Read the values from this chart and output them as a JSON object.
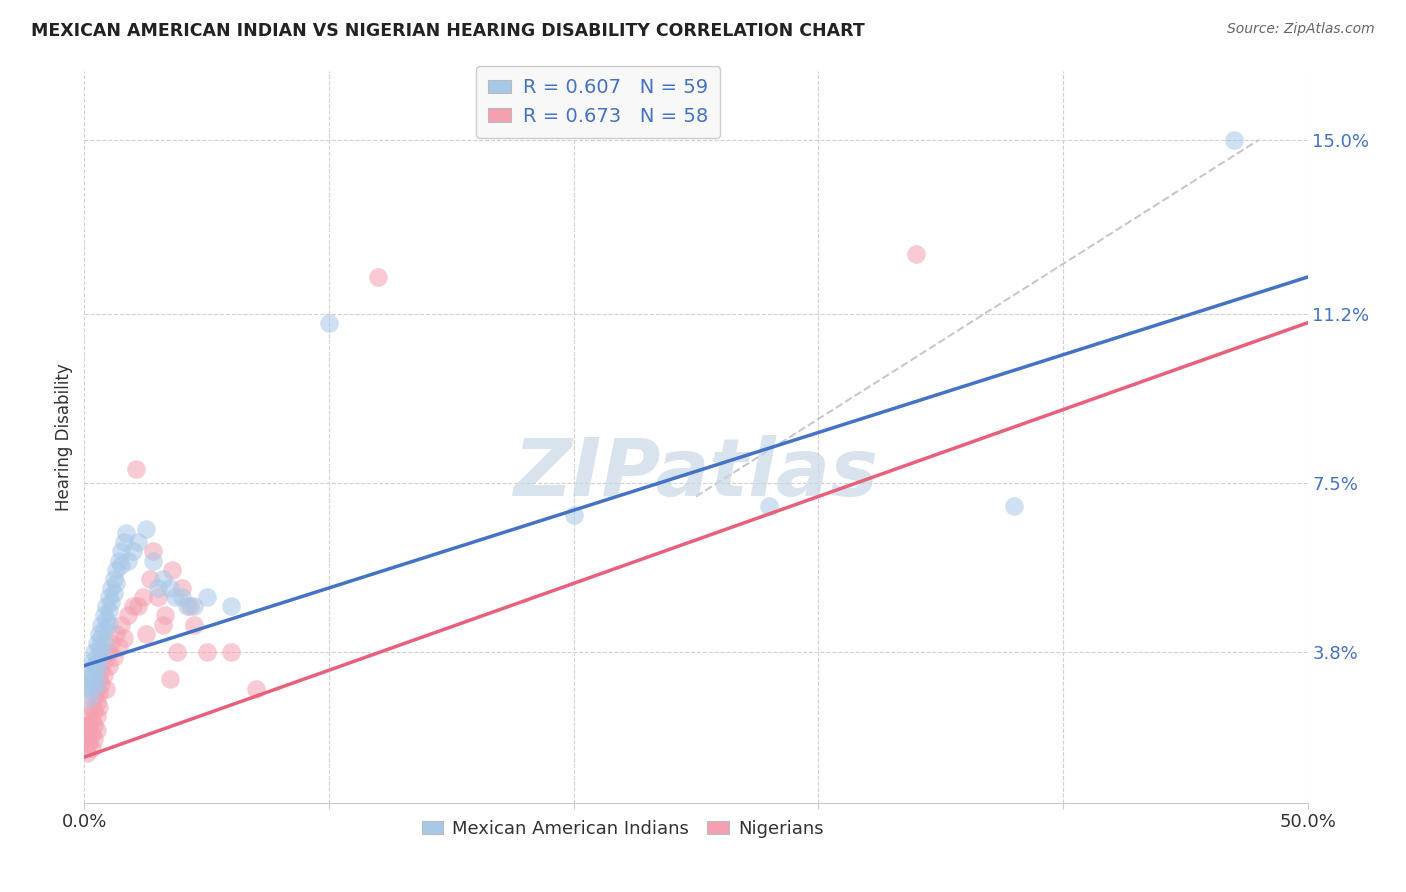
{
  "title": "MEXICAN AMERICAN INDIAN VS NIGERIAN HEARING DISABILITY CORRELATION CHART",
  "source": "Source: ZipAtlas.com",
  "ylabel": "Hearing Disability",
  "ytick_labels": [
    "15.0%",
    "11.2%",
    "7.5%",
    "3.8%"
  ],
  "ytick_values": [
    0.15,
    0.112,
    0.075,
    0.038
  ],
  "xlim": [
    0.0,
    0.5
  ],
  "ylim": [
    0.005,
    0.165
  ],
  "blue_R": "0.607",
  "blue_N": "59",
  "pink_R": "0.673",
  "pink_N": "58",
  "blue_color": "#a8c8e8",
  "pink_color": "#f4a0b0",
  "blue_scatter": [
    [
      0.001,
      0.032
    ],
    [
      0.001,
      0.03
    ],
    [
      0.002,
      0.034
    ],
    [
      0.002,
      0.031
    ],
    [
      0.002,
      0.028
    ],
    [
      0.003,
      0.036
    ],
    [
      0.003,
      0.033
    ],
    [
      0.003,
      0.03
    ],
    [
      0.004,
      0.038
    ],
    [
      0.004,
      0.035
    ],
    [
      0.004,
      0.032
    ],
    [
      0.005,
      0.04
    ],
    [
      0.005,
      0.037
    ],
    [
      0.005,
      0.034
    ],
    [
      0.005,
      0.031
    ],
    [
      0.006,
      0.042
    ],
    [
      0.006,
      0.039
    ],
    [
      0.006,
      0.036
    ],
    [
      0.007,
      0.044
    ],
    [
      0.007,
      0.041
    ],
    [
      0.007,
      0.038
    ],
    [
      0.008,
      0.046
    ],
    [
      0.008,
      0.043
    ],
    [
      0.008,
      0.04
    ],
    [
      0.009,
      0.048
    ],
    [
      0.009,
      0.045
    ],
    [
      0.01,
      0.05
    ],
    [
      0.01,
      0.047
    ],
    [
      0.01,
      0.044
    ],
    [
      0.011,
      0.052
    ],
    [
      0.011,
      0.049
    ],
    [
      0.012,
      0.054
    ],
    [
      0.012,
      0.051
    ],
    [
      0.013,
      0.056
    ],
    [
      0.013,
      0.053
    ],
    [
      0.014,
      0.058
    ],
    [
      0.015,
      0.06
    ],
    [
      0.015,
      0.057
    ],
    [
      0.016,
      0.062
    ],
    [
      0.017,
      0.064
    ],
    [
      0.018,
      0.058
    ],
    [
      0.02,
      0.06
    ],
    [
      0.022,
      0.062
    ],
    [
      0.025,
      0.065
    ],
    [
      0.028,
      0.058
    ],
    [
      0.03,
      0.052
    ],
    [
      0.032,
      0.054
    ],
    [
      0.035,
      0.052
    ],
    [
      0.037,
      0.05
    ],
    [
      0.04,
      0.05
    ],
    [
      0.042,
      0.048
    ],
    [
      0.045,
      0.048
    ],
    [
      0.05,
      0.05
    ],
    [
      0.06,
      0.048
    ],
    [
      0.1,
      0.11
    ],
    [
      0.2,
      0.068
    ],
    [
      0.28,
      0.07
    ],
    [
      0.38,
      0.07
    ],
    [
      0.47,
      0.15
    ]
  ],
  "pink_scatter": [
    [
      0.001,
      0.022
    ],
    [
      0.001,
      0.02
    ],
    [
      0.001,
      0.018
    ],
    [
      0.001,
      0.016
    ],
    [
      0.002,
      0.024
    ],
    [
      0.002,
      0.022
    ],
    [
      0.002,
      0.02
    ],
    [
      0.002,
      0.018
    ],
    [
      0.003,
      0.026
    ],
    [
      0.003,
      0.023
    ],
    [
      0.003,
      0.02
    ],
    [
      0.003,
      0.017
    ],
    [
      0.004,
      0.028
    ],
    [
      0.004,
      0.025
    ],
    [
      0.004,
      0.022
    ],
    [
      0.004,
      0.019
    ],
    [
      0.005,
      0.03
    ],
    [
      0.005,
      0.027
    ],
    [
      0.005,
      0.024
    ],
    [
      0.005,
      0.021
    ],
    [
      0.006,
      0.032
    ],
    [
      0.006,
      0.029
    ],
    [
      0.006,
      0.026
    ],
    [
      0.007,
      0.034
    ],
    [
      0.007,
      0.031
    ],
    [
      0.008,
      0.036
    ],
    [
      0.008,
      0.033
    ],
    [
      0.009,
      0.03
    ],
    [
      0.01,
      0.038
    ],
    [
      0.01,
      0.035
    ],
    [
      0.011,
      0.04
    ],
    [
      0.012,
      0.037
    ],
    [
      0.013,
      0.042
    ],
    [
      0.014,
      0.039
    ],
    [
      0.015,
      0.044
    ],
    [
      0.016,
      0.041
    ],
    [
      0.018,
      0.046
    ],
    [
      0.02,
      0.048
    ],
    [
      0.021,
      0.078
    ],
    [
      0.022,
      0.048
    ],
    [
      0.024,
      0.05
    ],
    [
      0.025,
      0.042
    ],
    [
      0.027,
      0.054
    ],
    [
      0.028,
      0.06
    ],
    [
      0.03,
      0.05
    ],
    [
      0.032,
      0.044
    ],
    [
      0.033,
      0.046
    ],
    [
      0.035,
      0.032
    ],
    [
      0.036,
      0.056
    ],
    [
      0.038,
      0.038
    ],
    [
      0.04,
      0.052
    ],
    [
      0.043,
      0.048
    ],
    [
      0.045,
      0.044
    ],
    [
      0.05,
      0.038
    ],
    [
      0.06,
      0.038
    ],
    [
      0.07,
      0.03
    ],
    [
      0.12,
      0.12
    ],
    [
      0.34,
      0.125
    ]
  ],
  "blue_line": [
    [
      0.0,
      0.035
    ],
    [
      0.5,
      0.12
    ]
  ],
  "pink_line": [
    [
      0.0,
      0.015
    ],
    [
      0.5,
      0.11
    ]
  ],
  "dashed_line": [
    [
      0.25,
      0.072
    ],
    [
      0.48,
      0.15
    ]
  ],
  "blue_line_color": "#4472c4",
  "pink_line_color": "#e8607a",
  "dashed_line_color": "#c8c8c8",
  "background_color": "#ffffff",
  "grid_color": "#d0d0d0",
  "watermark": "ZIPatlas",
  "watermark_color": "#c8d8e8",
  "legend_box_color": "#f8f8f8",
  "xtick_positions": [
    0.0,
    0.1,
    0.2,
    0.3,
    0.4,
    0.5
  ],
  "xtick_labels": [
    "0.0%",
    "",
    "",
    "",
    "",
    "50.0%"
  ]
}
